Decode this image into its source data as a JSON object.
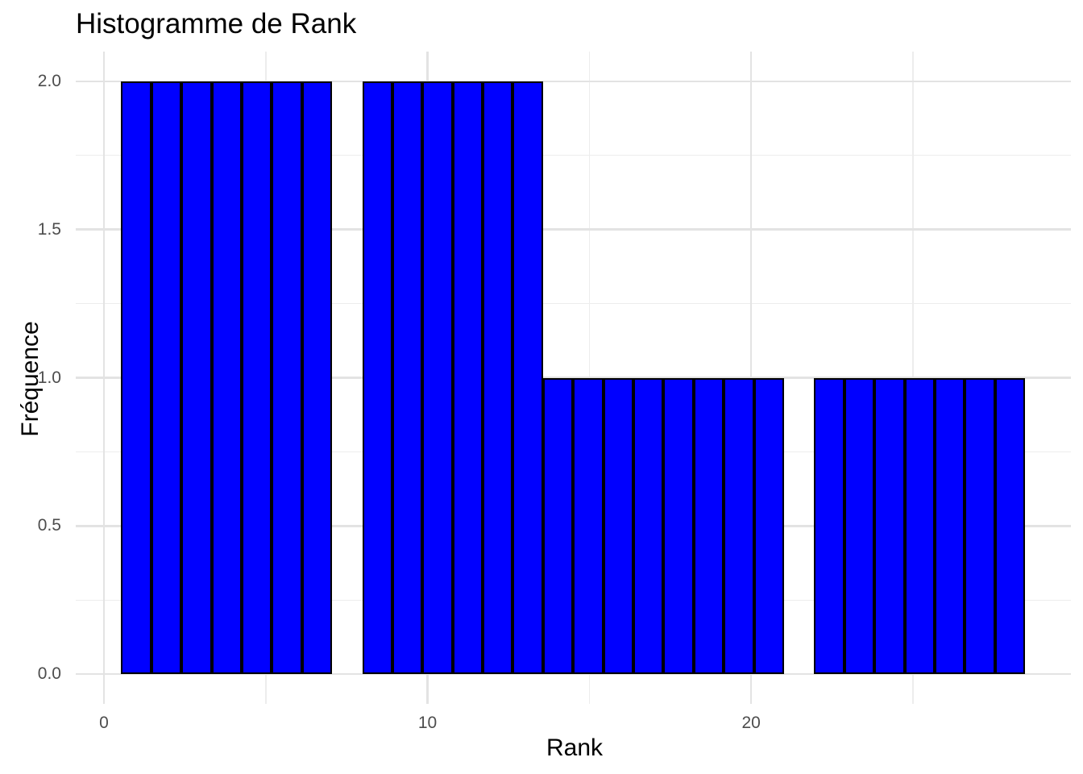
{
  "title": "Histogramme de Rank",
  "colors": {
    "background": "#FFFFFF",
    "bar_fill": "#0000FF",
    "bar_border": "#000000",
    "grid_major": "#E3E3E3",
    "grid_minor": "#EDEDED",
    "tick_label_text": "#4D4D4D",
    "title_text": "#000000"
  },
  "chart_data": {
    "type": "bar",
    "subtype": "histogram",
    "title": "Histogramme de Rank",
    "xlabel": "Rank",
    "ylabel": "Fréquence",
    "bin_start": 0.5345,
    "binwidth": 0.931,
    "bin_counts": [
      2,
      2,
      2,
      2,
      2,
      2,
      2,
      0,
      2,
      2,
      2,
      2,
      2,
      2,
      1,
      1,
      1,
      1,
      1,
      1,
      1,
      1,
      0,
      1,
      1,
      1,
      1,
      1,
      1,
      1
    ],
    "xlim": [
      -0.87,
      29.88
    ],
    "ylim": [
      -0.1,
      2.1
    ],
    "x_ticks": {
      "values": [
        0,
        10,
        20
      ],
      "labels": [
        "0",
        "10",
        "20"
      ]
    },
    "x_minor_ticks": [
      5,
      15,
      25
    ],
    "y_ticks": {
      "values": [
        0.0,
        0.5,
        1.0,
        1.5,
        2.0
      ],
      "labels": [
        "0.0",
        "0.5",
        "1.0",
        "1.5",
        "2.0"
      ]
    },
    "y_minor_ticks": [
      0.25,
      0.75,
      1.25,
      1.75
    ],
    "grid": true,
    "legend": "none"
  }
}
